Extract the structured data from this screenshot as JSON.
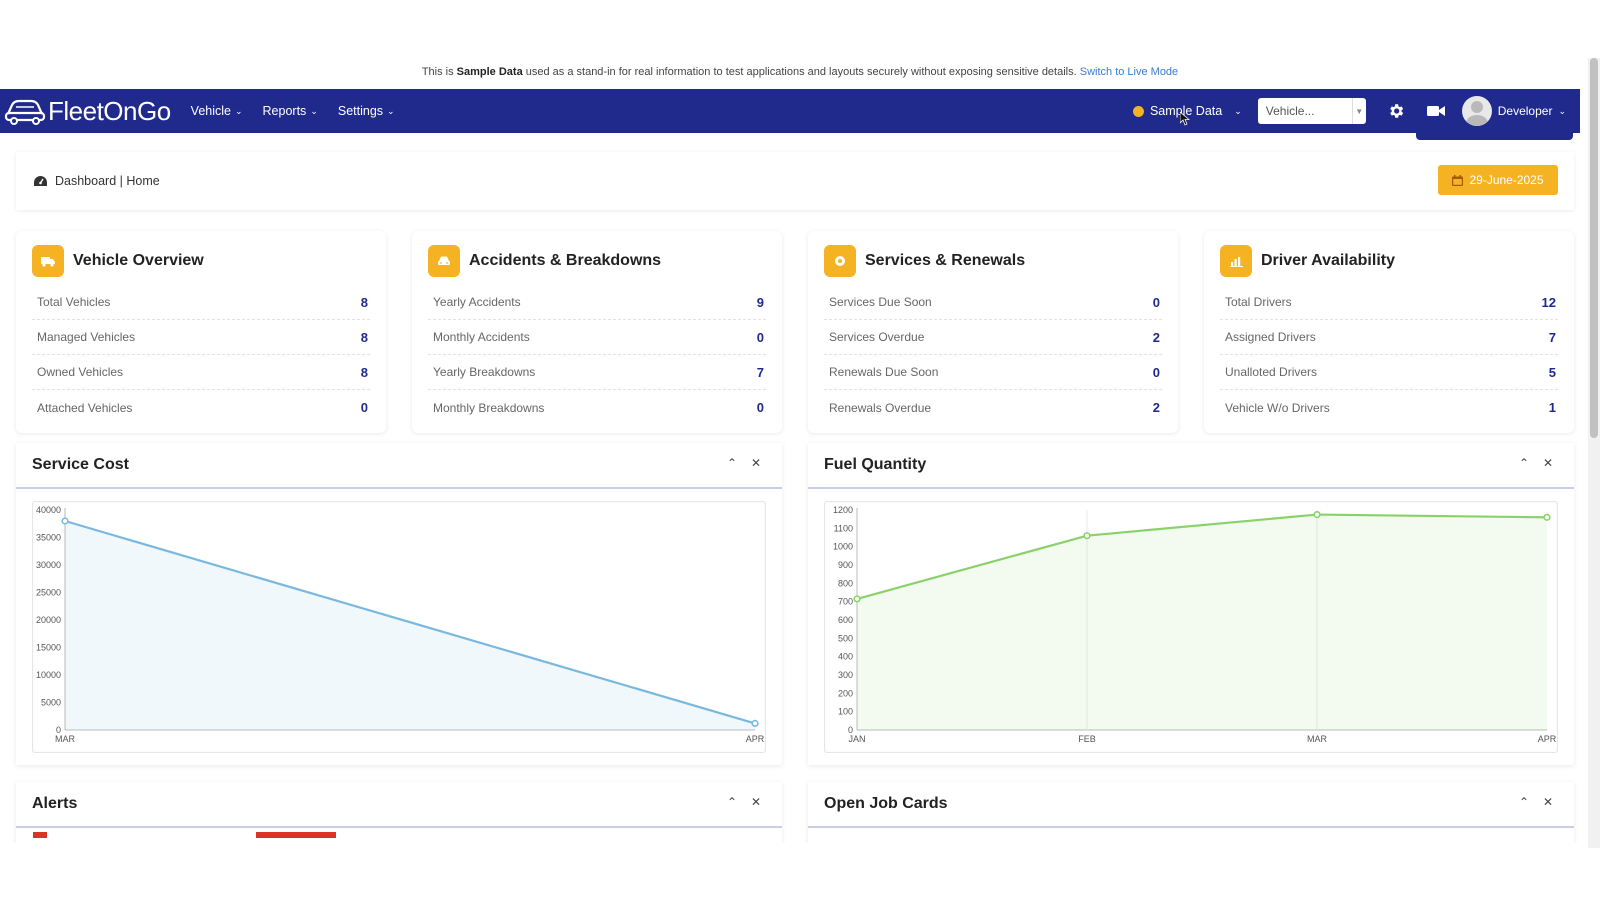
{
  "notice": {
    "prefix": "This is ",
    "bold": "Sample Data",
    "suffix": " used as a stand-in for real information to test applications and layouts securely without exposing sensitive details. ",
    "link": "Switch to Live Mode"
  },
  "navbar": {
    "logo": "FleetOnGo",
    "menu": [
      {
        "label": "Vehicle"
      },
      {
        "label": "Reports"
      },
      {
        "label": "Settings"
      }
    ],
    "sample_label": "Sample Data",
    "vehicle_select": "Vehicle...",
    "user": "Developer",
    "colors": {
      "bar": "#1f2a8c",
      "accent": "#f5b323"
    }
  },
  "breadcrumb": {
    "text": "Dashboard | Home",
    "date": "29-June-2025"
  },
  "cards": [
    {
      "title": "Vehicle Overview",
      "icon": "truck-icon",
      "rows": [
        {
          "label": "Total Vehicles",
          "value": "8"
        },
        {
          "label": "Managed Vehicles",
          "value": "8"
        },
        {
          "label": "Owned Vehicles",
          "value": "8"
        },
        {
          "label": "Attached Vehicles",
          "value": "0"
        }
      ]
    },
    {
      "title": "Accidents & Breakdowns",
      "icon": "car-crash-icon",
      "rows": [
        {
          "label": "Yearly Accidents",
          "value": "9"
        },
        {
          "label": "Monthly Accidents",
          "value": "0"
        },
        {
          "label": "Yearly Breakdowns",
          "value": "7"
        },
        {
          "label": "Monthly Breakdowns",
          "value": "0"
        }
      ]
    },
    {
      "title": "Services & Renewals",
      "icon": "service-icon",
      "rows": [
        {
          "label": "Services Due Soon",
          "value": "0"
        },
        {
          "label": "Services Overdue",
          "value": "2"
        },
        {
          "label": "Renewals Due Soon",
          "value": "0"
        },
        {
          "label": "Renewals Overdue",
          "value": "2"
        }
      ]
    },
    {
      "title": "Driver Availability",
      "icon": "bar-chart-icon",
      "rows": [
        {
          "label": "Total Drivers",
          "value": "12"
        },
        {
          "label": "Assigned Drivers",
          "value": "7"
        },
        {
          "label": "Unalloted Drivers",
          "value": "5"
        },
        {
          "label": "Vehicle W/o Drivers",
          "value": "1"
        }
      ]
    }
  ],
  "panels": {
    "service_cost": {
      "title": "Service Cost"
    },
    "fuel_quantity": {
      "title": "Fuel Quantity"
    },
    "alerts": {
      "title": "Alerts"
    },
    "open_job_cards": {
      "title": "Open Job Cards"
    }
  },
  "chart_data": [
    {
      "type": "area",
      "title": "Service Cost",
      "categories": [
        "MAR",
        "APR"
      ],
      "series": [
        {
          "values": [
            38000,
            1200
          ]
        }
      ],
      "ylim": [
        0,
        40000
      ],
      "yticks": [
        0,
        5000,
        10000,
        15000,
        20000,
        25000,
        30000,
        35000,
        40000
      ],
      "color": "#7ab8e0",
      "grid": false
    },
    {
      "type": "area",
      "title": "Fuel Quantity",
      "categories": [
        "JAN",
        "FEB",
        "MAR",
        "APR"
      ],
      "series": [
        {
          "values": [
            715,
            1060,
            1175,
            1160
          ]
        }
      ],
      "ylim": [
        0,
        1200
      ],
      "yticks": [
        0,
        100,
        200,
        300,
        400,
        500,
        600,
        700,
        800,
        900,
        1000,
        1100,
        1200
      ],
      "color": "#8ad16a",
      "grid": true
    }
  ]
}
